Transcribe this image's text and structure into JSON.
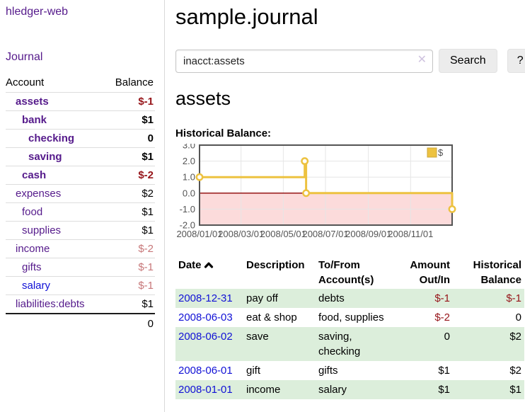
{
  "app_title": "hledger-web",
  "sidebar": {
    "journal_link": "Journal",
    "accounts": {
      "col_account": "Account",
      "col_balance": "Balance",
      "rows": [
        {
          "name": "assets",
          "depth": 1,
          "bold": true,
          "balance": "$-1",
          "neg": "strong"
        },
        {
          "name": "bank",
          "depth": 2,
          "bold": true,
          "balance": "$1",
          "neg": "none"
        },
        {
          "name": "checking",
          "depth": 3,
          "bold": true,
          "balance": "0",
          "neg": "none"
        },
        {
          "name": "saving",
          "depth": 3,
          "bold": true,
          "balance": "$1",
          "neg": "none"
        },
        {
          "name": "cash",
          "depth": 2,
          "bold": true,
          "balance": "$-2",
          "neg": "strong"
        },
        {
          "name": "expenses",
          "depth": 1,
          "bold": false,
          "balance": "$2",
          "neg": "none"
        },
        {
          "name": "food",
          "depth": 2,
          "bold": false,
          "balance": "$1",
          "neg": "none"
        },
        {
          "name": "supplies",
          "depth": 2,
          "bold": false,
          "balance": "$1",
          "neg": "none"
        },
        {
          "name": "income",
          "depth": 1,
          "bold": false,
          "balance": "$-2",
          "neg": "faded"
        },
        {
          "name": "gifts",
          "depth": 2,
          "bold": false,
          "balance": "$-1",
          "neg": "faded"
        },
        {
          "name": "salary",
          "depth": 2,
          "bold": false,
          "balance": "$-1",
          "neg": "faded",
          "link_color": "blue"
        },
        {
          "name": "liabilities:debts",
          "depth": 1,
          "bold": false,
          "balance": "$1",
          "neg": "none"
        }
      ],
      "total": "0"
    }
  },
  "main": {
    "title": "sample.journal",
    "search": {
      "value": "inacct:assets",
      "clear_icon": "✕",
      "search_button": "Search",
      "help_button": "?"
    },
    "heading": "assets",
    "chart_title": "Historical Balance:"
  },
  "chart_data": {
    "type": "line",
    "title": "Historical Balance",
    "step": true,
    "x_range": [
      "2008/01/01",
      "2008/12/31"
    ],
    "ylim": [
      -2,
      3
    ],
    "yticks": [
      3.0,
      2.0,
      1.0,
      0.0,
      -1.0,
      -2.0
    ],
    "xticks": [
      "2008/01/01",
      "2008/03/01",
      "2008/05/01",
      "2008/07/01",
      "2008/09/01",
      "2008/11/01"
    ],
    "series": [
      {
        "name": "$",
        "color": "#edc240",
        "points": [
          {
            "x": "2008/01/01",
            "y": 1
          },
          {
            "x": "2008/06/01",
            "y": 2
          },
          {
            "x": "2008/06/03",
            "y": 0
          },
          {
            "x": "2008/12/31",
            "y": -1
          }
        ]
      }
    ],
    "legend": {
      "label": "$",
      "position": "top-right"
    },
    "grid": true,
    "negative_region_fill": "#fcdbdb",
    "zero_line_color": "#8b0000",
    "border_color": "#545454",
    "tick_label_color": "#545454"
  },
  "register_table": {
    "headers": {
      "date": "Date",
      "sort_indicator": "ascending",
      "description": "Description",
      "tofrom_line1": "To/From",
      "tofrom_line2": "Account(s)",
      "amount_line1": "Amount",
      "amount_line2": "Out/In",
      "balance_line1": "Historical",
      "balance_line2": "Balance"
    },
    "rows": [
      {
        "date": "2008-12-31",
        "description": "pay off",
        "accounts": "debts",
        "amount": "$-1",
        "amount_neg": true,
        "balance": "$-1",
        "balance_neg": true
      },
      {
        "date": "2008-06-03",
        "description": "eat & shop",
        "accounts": "food, supplies",
        "amount": "$-2",
        "amount_neg": true,
        "balance": "0",
        "balance_neg": false
      },
      {
        "date": "2008-06-02",
        "description": "save",
        "accounts": "saving, checking",
        "amount": "0",
        "amount_neg": false,
        "balance": "$2",
        "balance_neg": false
      },
      {
        "date": "2008-06-01",
        "description": "gift",
        "accounts": "gifts",
        "amount": "$1",
        "amount_neg": false,
        "balance": "$2",
        "balance_neg": false
      },
      {
        "date": "2008-01-01",
        "description": "income",
        "accounts": "salary",
        "amount": "$1",
        "amount_neg": false,
        "balance": "$1",
        "balance_neg": false
      }
    ]
  },
  "colors": {
    "link_purple": "#551a8b",
    "link_blue": "#1111d6",
    "negative": "#961419",
    "negative_faded": "#c77779",
    "row_stripe_green": "#dceedb",
    "chart_line": "#edc240",
    "chart_negative_fill": "#fcdbdb",
    "chart_zero_line": "#8b0000"
  }
}
